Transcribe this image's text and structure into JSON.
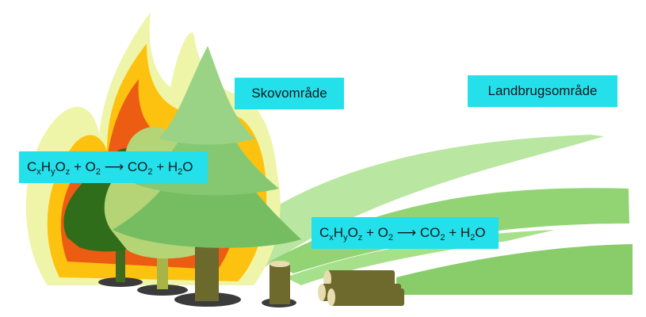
{
  "labels": {
    "forest_area": "Skovområde",
    "agricultural_area": "Landbrugsområde"
  },
  "equation": {
    "c": "C",
    "x": "x",
    "h": "H",
    "y": "y",
    "o": "O",
    "z": "z",
    "plus1": " + ",
    "o2": "O",
    "two_a": "2",
    "arrow": " ⟶ ",
    "co2": "CO",
    "two_b": "2",
    "plus2": " + ",
    "h2o_h": "H",
    "two_c": "2",
    "h2o_o": "O"
  },
  "colors": {
    "label_bg": "#24e0eb",
    "flame_outer": "#eff5a8",
    "flame_mid": "#fcc20f",
    "flame_inner": "#ec5c12",
    "pine": "#76bd62",
    "field_light": "#a7e08a",
    "field_mid": "#8fd173",
    "trunk": "#6b6a2c",
    "logs": "#6e6a2d"
  }
}
